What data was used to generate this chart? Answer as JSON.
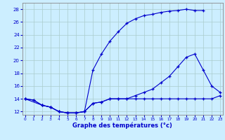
{
  "xlabel": "Graphe des températures (°c)",
  "bg_color": "#cceeff",
  "grid_color": "#aacccc",
  "line_color": "#0000cc",
  "x_ticks": [
    0,
    1,
    2,
    3,
    4,
    5,
    6,
    7,
    8,
    9,
    10,
    11,
    12,
    13,
    14,
    15,
    16,
    17,
    18,
    19,
    20,
    21,
    22,
    23
  ],
  "y_ticks": [
    12,
    14,
    16,
    18,
    20,
    22,
    24,
    26,
    28
  ],
  "xlim": [
    -0.3,
    23.3
  ],
  "ylim": [
    11.5,
    29.0
  ],
  "curve_min_x": [
    0,
    1,
    2,
    3,
    4,
    5,
    6,
    7,
    8,
    9,
    10,
    11,
    12,
    13,
    14,
    15,
    16,
    17,
    18,
    19,
    20,
    21,
    22,
    23
  ],
  "curve_min_y": [
    14.0,
    13.8,
    13.0,
    12.7,
    12.0,
    11.8,
    11.8,
    12.0,
    13.3,
    13.5,
    14.0,
    14.0,
    14.0,
    14.0,
    14.0,
    14.0,
    14.0,
    14.0,
    14.0,
    14.0,
    14.0,
    14.0,
    14.0,
    14.5
  ],
  "curve_max_x": [
    0,
    1,
    2,
    3,
    4,
    5,
    6,
    7,
    8,
    9,
    10,
    11,
    12,
    13,
    14,
    15,
    16,
    17,
    18,
    19,
    20,
    21
  ],
  "curve_max_y": [
    14.0,
    13.8,
    13.0,
    12.7,
    12.0,
    11.8,
    11.8,
    12.0,
    18.5,
    21.0,
    23.0,
    24.5,
    25.8,
    26.5,
    27.0,
    27.2,
    27.5,
    27.7,
    27.8,
    28.0,
    27.8,
    27.8
  ],
  "curve_daily_x": [
    0,
    2,
    3,
    4,
    5,
    6,
    7,
    8,
    9,
    10,
    11,
    12,
    13,
    14,
    15,
    16,
    17,
    18,
    19,
    20,
    21,
    22,
    23
  ],
  "curve_daily_y": [
    14.0,
    13.0,
    12.7,
    12.0,
    11.8,
    11.8,
    12.0,
    13.3,
    13.5,
    14.0,
    14.0,
    14.0,
    14.5,
    15.0,
    15.5,
    16.5,
    17.5,
    19.0,
    20.5,
    21.0,
    18.5,
    16.0,
    15.0
  ]
}
